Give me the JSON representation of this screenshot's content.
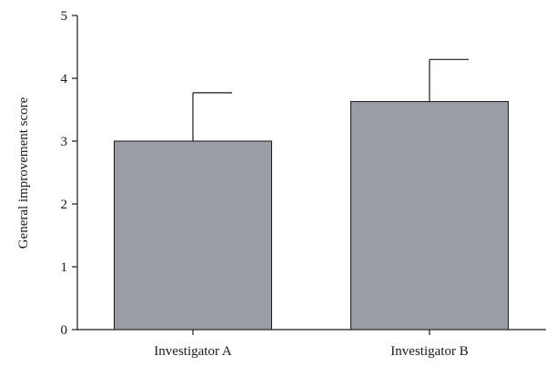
{
  "chart_data": {
    "type": "bar",
    "categories": [
      "Investigator A",
      "Investigator B"
    ],
    "values": [
      3.0,
      3.63
    ],
    "error_upper": [
      3.77,
      4.3
    ],
    "ylabel": "General improvement score",
    "xlabel": "",
    "ylim": [
      0,
      5
    ],
    "yticks": [
      "0",
      "1",
      "2",
      "3",
      "4",
      "5"
    ],
    "grid": false,
    "bar_color": "#9b9da4"
  }
}
